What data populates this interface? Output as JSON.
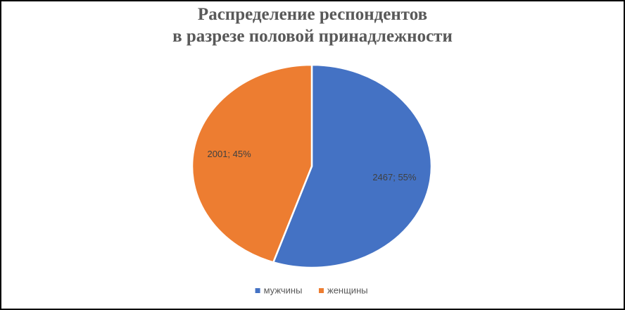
{
  "chart_data": {
    "type": "pie",
    "title": [
      "Распределение респондентов",
      "в разрезе половой принадлежности"
    ],
    "categories": [
      "мужчины",
      "женщины"
    ],
    "values": [
      2467,
      2001
    ],
    "value_labels": [
      "2467; 55%",
      "2001; 45%"
    ],
    "colors": [
      "#4472c4",
      "#ed7d31"
    ],
    "legend": "bottom"
  }
}
